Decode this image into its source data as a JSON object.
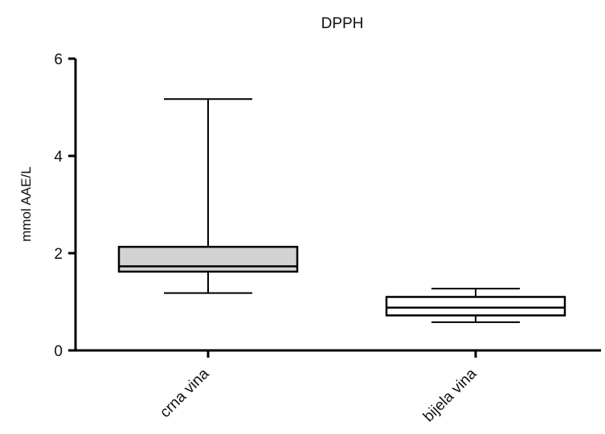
{
  "chart_data": {
    "type": "boxplot",
    "title": "DPPH",
    "xlabel": "",
    "ylabel": "mmol AAE/L",
    "ylim": [
      0,
      6
    ],
    "yticks": [
      0,
      2,
      4,
      6
    ],
    "grid": false,
    "categories": [
      "crna vina",
      "bijela vina"
    ],
    "boxes": [
      {
        "category": "crna vina",
        "min": 1.18,
        "q1": 1.62,
        "median": 1.73,
        "q3": 2.13,
        "max": 5.17,
        "fill": "#d3d3d3"
      },
      {
        "category": "bijela vina",
        "min": 0.58,
        "q1": 0.72,
        "median": 0.88,
        "q3": 1.1,
        "max": 1.27,
        "fill": "#ffffff"
      }
    ]
  }
}
